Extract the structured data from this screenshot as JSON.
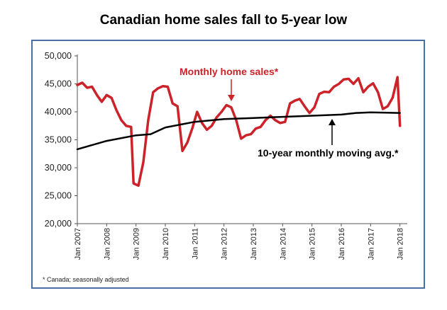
{
  "chart_data": {
    "type": "line",
    "title": "Canadian home sales fall to 5-year low",
    "footnote": "* Canada; seasonally adjusted",
    "xlabel": "",
    "ylabel": "",
    "ylim": [
      20000,
      50000
    ],
    "yticks": [
      "20,000",
      "25,000",
      "30,000",
      "35,000",
      "40,000",
      "45,000",
      "50,000"
    ],
    "xticks": [
      "Jan 2007",
      "Jan 2008",
      "Jan 2009",
      "Jan 2010",
      "Jan 2011",
      "Jan 2012",
      "Jan 2013",
      "Jan 2014",
      "Jan 2015",
      "Jan 2016",
      "Jan 2017",
      "Jan 2018"
    ],
    "grid": false,
    "annotations": {
      "monthly": "Monthly home sales*",
      "moving_avg": "10-year monthly moving avg.*"
    },
    "series": [
      {
        "name": "Monthly home sales*",
        "color": "#cc2229",
        "x": [
          "2007-01",
          "2007-03",
          "2007-05",
          "2007-07",
          "2007-09",
          "2007-11",
          "2008-01",
          "2008-03",
          "2008-05",
          "2008-07",
          "2008-09",
          "2008-11",
          "2008-12",
          "2009-02",
          "2009-04",
          "2009-06",
          "2009-08",
          "2009-10",
          "2009-12",
          "2010-02",
          "2010-04",
          "2010-06",
          "2010-08",
          "2010-10",
          "2010-12",
          "2011-02",
          "2011-04",
          "2011-06",
          "2011-08",
          "2011-10",
          "2011-12",
          "2012-02",
          "2012-04",
          "2012-06",
          "2012-08",
          "2012-10",
          "2012-12",
          "2013-02",
          "2013-04",
          "2013-06",
          "2013-08",
          "2013-10",
          "2013-12",
          "2014-02",
          "2014-04",
          "2014-06",
          "2014-08",
          "2014-10",
          "2014-12",
          "2015-02",
          "2015-04",
          "2015-06",
          "2015-08",
          "2015-10",
          "2015-12",
          "2016-02",
          "2016-04",
          "2016-06",
          "2016-08",
          "2016-10",
          "2016-12",
          "2017-02",
          "2017-04",
          "2017-06",
          "2017-08",
          "2017-10",
          "2017-12",
          "2018-01"
        ],
        "values": [
          44800,
          45200,
          44300,
          44500,
          43000,
          41800,
          43000,
          42500,
          40300,
          38500,
          37500,
          37300,
          27200,
          26800,
          31000,
          38500,
          43500,
          44200,
          44600,
          44500,
          41500,
          41000,
          33000,
          34500,
          37000,
          40000,
          38000,
          36800,
          37500,
          39000,
          40000,
          41200,
          40800,
          38500,
          35200,
          35800,
          36000,
          37000,
          37300,
          38500,
          39300,
          38500,
          38000,
          38200,
          41500,
          42000,
          42300,
          41000,
          39800,
          40800,
          43200,
          43600,
          43500,
          44500,
          45000,
          45800,
          45900,
          45000,
          46000,
          43500,
          44500,
          45100,
          43500,
          40500,
          41000,
          42500,
          46200,
          37500
        ]
      },
      {
        "name": "10-year monthly moving avg.*",
        "color": "#000000",
        "x": [
          "2007-01",
          "2008-01",
          "2009-01",
          "2009-07",
          "2010-01",
          "2011-01",
          "2012-01",
          "2013-01",
          "2014-01",
          "2015-01",
          "2016-01",
          "2016-07",
          "2017-01",
          "2018-01"
        ],
        "values": [
          33300,
          34800,
          35800,
          36000,
          37200,
          38200,
          38700,
          38900,
          39100,
          39300,
          39500,
          39800,
          39900,
          39800
        ]
      }
    ]
  }
}
